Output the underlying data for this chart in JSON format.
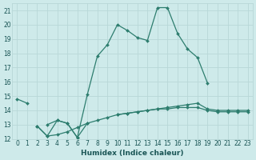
{
  "xlabel": "Humidex (Indice chaleur)",
  "x_values": [
    0,
    1,
    2,
    3,
    4,
    5,
    6,
    7,
    8,
    9,
    10,
    11,
    12,
    13,
    14,
    15,
    16,
    17,
    18,
    19,
    20,
    21,
    22,
    23
  ],
  "line1_y": [
    14.8,
    14.5,
    null,
    null,
    null,
    null,
    null,
    null,
    null,
    null,
    null,
    null,
    null,
    null,
    null,
    null,
    null,
    null,
    null,
    null,
    null,
    null,
    null,
    null
  ],
  "line2_y": [
    null,
    null,
    null,
    13.0,
    13.3,
    13.1,
    12.1,
    15.1,
    17.8,
    18.6,
    20.0,
    19.6,
    19.1,
    18.9,
    21.2,
    21.2,
    19.4,
    18.3,
    17.7,
    15.9,
    null,
    null,
    null,
    null
  ],
  "line3_y": [
    null,
    null,
    12.9,
    12.2,
    13.3,
    13.1,
    12.1,
    13.1,
    null,
    null,
    null,
    null,
    null,
    null,
    null,
    null,
    null,
    null,
    null,
    null,
    null,
    null,
    null,
    null
  ],
  "line4_y": [
    null,
    null,
    12.9,
    12.2,
    12.3,
    12.5,
    12.8,
    13.1,
    13.3,
    13.5,
    13.7,
    13.8,
    13.9,
    14.0,
    14.1,
    14.1,
    14.2,
    14.2,
    14.2,
    14.0,
    13.9,
    13.9,
    13.9,
    13.9
  ],
  "line5_y": [
    null,
    null,
    null,
    null,
    null,
    null,
    null,
    null,
    null,
    null,
    13.7,
    13.8,
    13.9,
    14.0,
    14.1,
    14.2,
    14.3,
    14.4,
    14.5,
    14.1,
    14.0,
    14.0,
    14.0,
    14.0
  ],
  "color": "#2d7d6e",
  "bg_color": "#ceeaea",
  "grid_color": "#b8d8d8",
  "ylim": [
    12,
    21.5
  ],
  "xlim": [
    -0.5,
    23.5
  ],
  "yticks": [
    12,
    13,
    14,
    15,
    16,
    17,
    18,
    19,
    20,
    21
  ],
  "xticks": [
    0,
    1,
    2,
    3,
    4,
    5,
    6,
    7,
    8,
    9,
    10,
    11,
    12,
    13,
    14,
    15,
    16,
    17,
    18,
    19,
    20,
    21,
    22,
    23
  ],
  "marker": "D",
  "markersize": 2.0,
  "linewidth": 0.9,
  "font_color": "#1a5555",
  "label_fontsize": 5.5,
  "xlabel_fontsize": 6.5
}
